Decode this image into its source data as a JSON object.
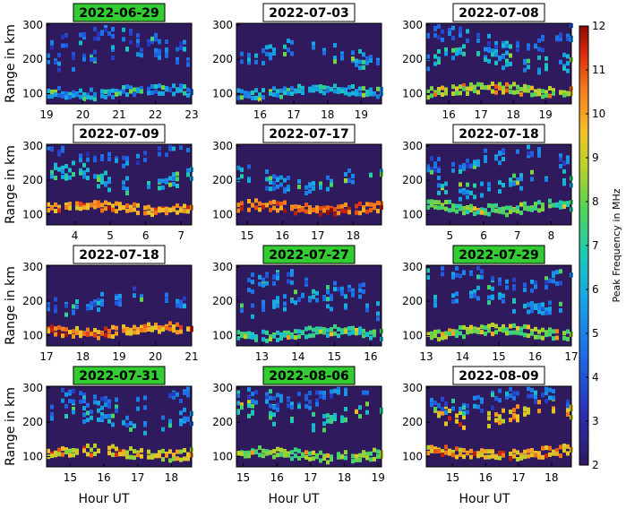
{
  "colors": {
    "background_level": "#2e1a5c",
    "title_highlight": "#33cc33",
    "title_plain": "#ffffff"
  },
  "figure": {
    "ylabel": "Range in km",
    "xlabel": "Hour UT",
    "colorbar": {
      "label": "Peak Frequency in MHz",
      "ticks": [
        "2",
        "3",
        "4",
        "5",
        "6",
        "7",
        "8",
        "9",
        "10",
        "11",
        "12"
      ],
      "range": [
        2,
        12
      ],
      "colormap": "jet-like (dark purple → blue → cyan → green → yellow → orange → red)"
    }
  },
  "chart_data": [
    {
      "type": "heatmap",
      "title": "2022-06-29",
      "title_highlight": true,
      "xlim": [
        19,
        23
      ],
      "xticks": [
        "19",
        "20",
        "21",
        "22",
        "23"
      ],
      "ylim": [
        70,
        305
      ],
      "yticks": [
        "100",
        "200",
        "300"
      ],
      "layers": [
        {
          "range_km": 105,
          "freq_mhz": 4.5
        },
        {
          "range_km": 210,
          "freq_mhz": 4
        },
        {
          "range_km": 260,
          "freq_mhz": 3.8
        }
      ]
    },
    {
      "type": "heatmap",
      "title": "2022-07-03",
      "title_highlight": false,
      "xlim": [
        15.3,
        19.6
      ],
      "xticks": [
        "16",
        "17",
        "18",
        "19"
      ],
      "ylim": [
        70,
        305
      ],
      "yticks": [
        "100",
        "200",
        "300"
      ],
      "layers": [
        {
          "range_km": 105,
          "freq_mhz": 5
        },
        {
          "range_km": 215,
          "freq_mhz": 4.5
        }
      ]
    },
    {
      "type": "heatmap",
      "title": "2022-07-08",
      "title_highlight": false,
      "xlim": [
        15.3,
        19.8
      ],
      "xticks": [
        "16",
        "17",
        "18",
        "19"
      ],
      "ylim": [
        70,
        305
      ],
      "yticks": [
        "100",
        "200",
        "300"
      ],
      "layers": [
        {
          "range_km": 110,
          "freq_mhz": 7.5
        },
        {
          "range_km": 200,
          "freq_mhz": 5
        },
        {
          "range_km": 260,
          "freq_mhz": 4
        }
      ]
    },
    {
      "type": "heatmap",
      "title": "2022-07-09",
      "title_highlight": false,
      "xlim": [
        3.2,
        7.3
      ],
      "xticks": [
        "4",
        "5",
        "6",
        "7"
      ],
      "ylim": [
        70,
        305
      ],
      "yticks": [
        "100",
        "200",
        "300"
      ],
      "layers": [
        {
          "range_km": 120,
          "freq_mhz": 9
        },
        {
          "range_km": 205,
          "freq_mhz": 5
        },
        {
          "range_km": 280,
          "freq_mhz": 3.5
        }
      ]
    },
    {
      "type": "heatmap",
      "title": "2022-07-17",
      "title_highlight": false,
      "xlim": [
        14.7,
        18.8
      ],
      "xticks": [
        "15",
        "16",
        "17",
        "18"
      ],
      "ylim": [
        70,
        305
      ],
      "yticks": [
        "100",
        "200",
        "300"
      ],
      "layers": [
        {
          "range_km": 120,
          "freq_mhz": 9.5
        },
        {
          "range_km": 200,
          "freq_mhz": 4.5
        }
      ]
    },
    {
      "type": "heatmap",
      "title": "2022-07-18",
      "title_highlight": false,
      "xlim": [
        4.3,
        8.6
      ],
      "xticks": [
        "5",
        "6",
        "7",
        "8"
      ],
      "ylim": [
        70,
        305
      ],
      "yticks": [
        "100",
        "200",
        "300"
      ],
      "layers": [
        {
          "range_km": 120,
          "freq_mhz": 6.5
        },
        {
          "range_km": 190,
          "freq_mhz": 5
        },
        {
          "range_km": 260,
          "freq_mhz": 4
        }
      ]
    },
    {
      "type": "heatmap",
      "title": "2022-07-18",
      "title_highlight": false,
      "xlim": [
        17,
        21
      ],
      "xticks": [
        "17",
        "18",
        "19",
        "20",
        "21"
      ],
      "ylim": [
        70,
        305
      ],
      "yticks": [
        "100",
        "200",
        "300"
      ],
      "layers": [
        {
          "range_km": 115,
          "freq_mhz": 9
        },
        {
          "range_km": 200,
          "freq_mhz": 4
        }
      ]
    },
    {
      "type": "heatmap",
      "title": "2022-07-27",
      "title_highlight": true,
      "xlim": [
        12.3,
        16.3
      ],
      "xticks": [
        "13",
        "14",
        "15",
        "16"
      ],
      "ylim": [
        70,
        305
      ],
      "yticks": [
        "100",
        "200",
        "300"
      ],
      "layers": [
        {
          "range_km": 105,
          "freq_mhz": 6
        },
        {
          "range_km": 190,
          "freq_mhz": 4.5
        },
        {
          "range_km": 250,
          "freq_mhz": 4
        }
      ]
    },
    {
      "type": "heatmap",
      "title": "2022-07-29",
      "title_highlight": true,
      "xlim": [
        13,
        17
      ],
      "xticks": [
        "13",
        "14",
        "15",
        "16",
        "17"
      ],
      "ylim": [
        70,
        305
      ],
      "yticks": [
        "100",
        "200",
        "300"
      ],
      "layers": [
        {
          "range_km": 110,
          "freq_mhz": 7
        },
        {
          "range_km": 200,
          "freq_mhz": 4.5
        },
        {
          "range_km": 270,
          "freq_mhz": 4
        }
      ]
    },
    {
      "type": "heatmap",
      "title": "2022-07-31",
      "title_highlight": true,
      "xlim": [
        14.3,
        18.6
      ],
      "xticks": [
        "15",
        "16",
        "17",
        "18"
      ],
      "ylim": [
        70,
        305
      ],
      "yticks": [
        "100",
        "200",
        "300"
      ],
      "layers": [
        {
          "range_km": 110,
          "freq_mhz": 8
        },
        {
          "range_km": 210,
          "freq_mhz": 4.5
        },
        {
          "range_km": 270,
          "freq_mhz": 4
        }
      ]
    },
    {
      "type": "heatmap",
      "title": "2022-08-06",
      "title_highlight": true,
      "xlim": [
        14.8,
        19.1
      ],
      "xticks": [
        "15",
        "16",
        "17",
        "18",
        "19"
      ],
      "ylim": [
        70,
        305
      ],
      "yticks": [
        "100",
        "200",
        "300"
      ],
      "layers": [
        {
          "range_km": 105,
          "freq_mhz": 7
        },
        {
          "range_km": 220,
          "freq_mhz": 6
        },
        {
          "range_km": 280,
          "freq_mhz": 4
        }
      ]
    },
    {
      "type": "heatmap",
      "title": "2022-08-09",
      "title_highlight": false,
      "xlim": [
        14.2,
        18.6
      ],
      "xticks": [
        "15",
        "16",
        "17",
        "18"
      ],
      "ylim": [
        70,
        305
      ],
      "yticks": [
        "100",
        "200",
        "300"
      ],
      "layers": [
        {
          "range_km": 110,
          "freq_mhz": 8.5
        },
        {
          "range_km": 225,
          "freq_mhz": 8.5
        },
        {
          "range_km": 265,
          "freq_mhz": 4
        }
      ]
    }
  ]
}
